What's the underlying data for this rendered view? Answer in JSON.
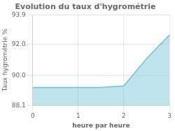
{
  "chart_data": {
    "type": "line",
    "title": "Evolution du taux d'hygrométrie",
    "xlabel": "heure par heure",
    "ylabel": "Taux hygrométrie %",
    "x": [
      0,
      0.5,
      1,
      1.5,
      2,
      2.5,
      3
    ],
    "values": [
      89.25,
      89.25,
      89.25,
      89.25,
      89.35,
      91.1,
      92.6
    ],
    "color": "#70c0d8",
    "xlim": [
      0,
      3
    ],
    "ylim": [
      88.1,
      93.9
    ],
    "xticks": [
      0,
      1,
      2,
      3
    ],
    "yticks": [
      88.1,
      {
        "value": 90.0,
        "label": "90.0"
      },
      {
        "value": 92.0,
        "label": "92.0"
      },
      93.9
    ],
    "grid": true
  }
}
